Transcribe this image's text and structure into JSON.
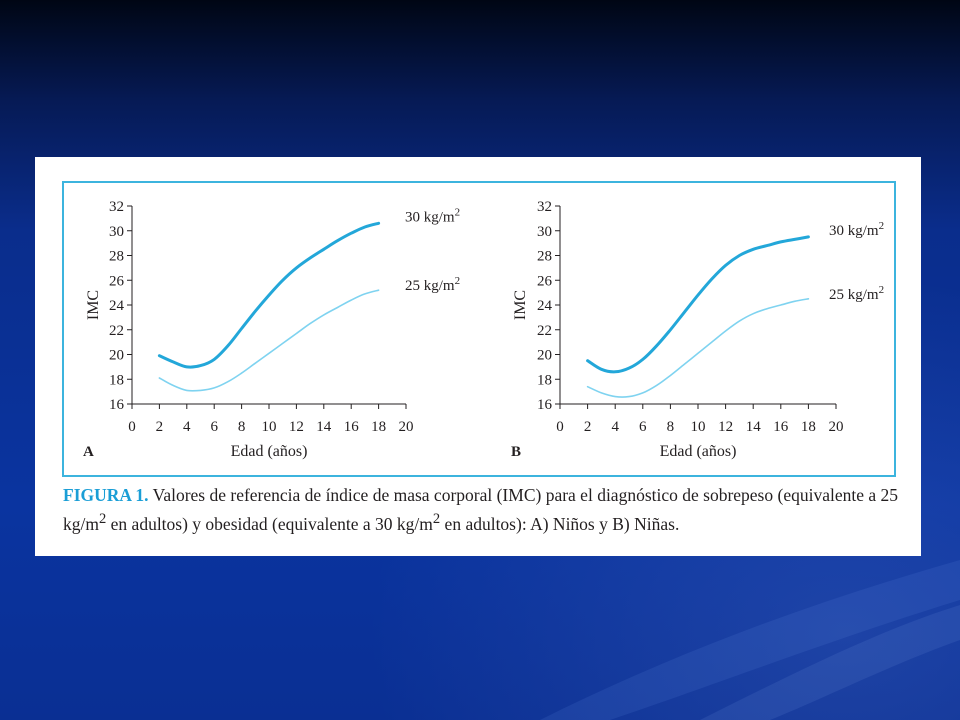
{
  "slide": {
    "background_color": "#0a2d8c",
    "panel_color": "#ffffff",
    "frame_color": "#3cb4de"
  },
  "caption": {
    "lead": "FIGURA 1.",
    "text_1": " Valores de referencia de índice de masa corporal (IMC) para el diagnóstico de sobrepeso (equivalente a 25 kg/m",
    "sup_1": "2",
    "text_2": " en adultos) y obesidad (equivalente a 30 kg/m",
    "sup_2": "2",
    "text_3": " en adultos): A) Niños y B) Niñas."
  },
  "chart_data": [
    {
      "type": "line",
      "panel_label": "A",
      "xlabel": "Edad (años)",
      "ylabel": "IMC",
      "xlim": [
        0,
        20
      ],
      "ylim": [
        16,
        32
      ],
      "xticks": [
        0,
        2,
        4,
        6,
        8,
        10,
        12,
        14,
        16,
        18,
        20
      ],
      "yticks": [
        16,
        18,
        20,
        22,
        24,
        26,
        28,
        30,
        32
      ],
      "grid": false,
      "series": [
        {
          "name": "30 kg/m2",
          "label_text": "30 kg/m",
          "label_sup": "2",
          "color": "#23a7d9",
          "x": [
            2,
            3,
            4,
            5,
            6,
            7,
            8,
            9,
            10,
            11,
            12,
            13,
            14,
            15,
            16,
            17,
            18
          ],
          "y": [
            19.9,
            19.4,
            19.0,
            19.1,
            19.6,
            20.7,
            22.1,
            23.5,
            24.8,
            26.0,
            27.0,
            27.8,
            28.5,
            29.2,
            29.8,
            30.3,
            30.6
          ]
        },
        {
          "name": "25 kg/m2",
          "label_text": "25 kg/m",
          "label_sup": "2",
          "color": "#7fd3f0",
          "x": [
            2,
            3,
            4,
            5,
            6,
            7,
            8,
            9,
            10,
            11,
            12,
            13,
            14,
            15,
            16,
            17,
            18
          ],
          "y": [
            18.1,
            17.5,
            17.1,
            17.1,
            17.3,
            17.8,
            18.5,
            19.3,
            20.1,
            20.9,
            21.7,
            22.5,
            23.2,
            23.8,
            24.4,
            24.9,
            25.2
          ]
        }
      ]
    },
    {
      "type": "line",
      "panel_label": "B",
      "xlabel": "Edad (años)",
      "ylabel": "IMC",
      "xlim": [
        0,
        20
      ],
      "ylim": [
        16,
        32
      ],
      "xticks": [
        0,
        2,
        4,
        6,
        8,
        10,
        12,
        14,
        16,
        18,
        20
      ],
      "yticks": [
        16,
        18,
        20,
        22,
        24,
        26,
        28,
        30,
        32
      ],
      "grid": false,
      "series": [
        {
          "name": "30 kg/m2",
          "label_text": "30 kg/m",
          "label_sup": "2",
          "color": "#23a7d9",
          "x": [
            2,
            3,
            4,
            5,
            6,
            7,
            8,
            9,
            10,
            11,
            12,
            13,
            14,
            15,
            16,
            17,
            18
          ],
          "y": [
            19.5,
            18.8,
            18.6,
            18.9,
            19.6,
            20.7,
            22.0,
            23.4,
            24.8,
            26.1,
            27.2,
            28.0,
            28.5,
            28.8,
            29.1,
            29.3,
            29.5
          ]
        },
        {
          "name": "25 kg/m2",
          "label_text": "25 kg/m",
          "label_sup": "2",
          "color": "#7fd3f0",
          "x": [
            2,
            3,
            4,
            5,
            6,
            7,
            8,
            9,
            10,
            11,
            12,
            13,
            14,
            15,
            16,
            17,
            18
          ],
          "y": [
            17.4,
            16.9,
            16.6,
            16.6,
            16.9,
            17.5,
            18.3,
            19.2,
            20.1,
            21.0,
            21.9,
            22.7,
            23.3,
            23.7,
            24.0,
            24.3,
            24.5
          ]
        }
      ]
    }
  ]
}
